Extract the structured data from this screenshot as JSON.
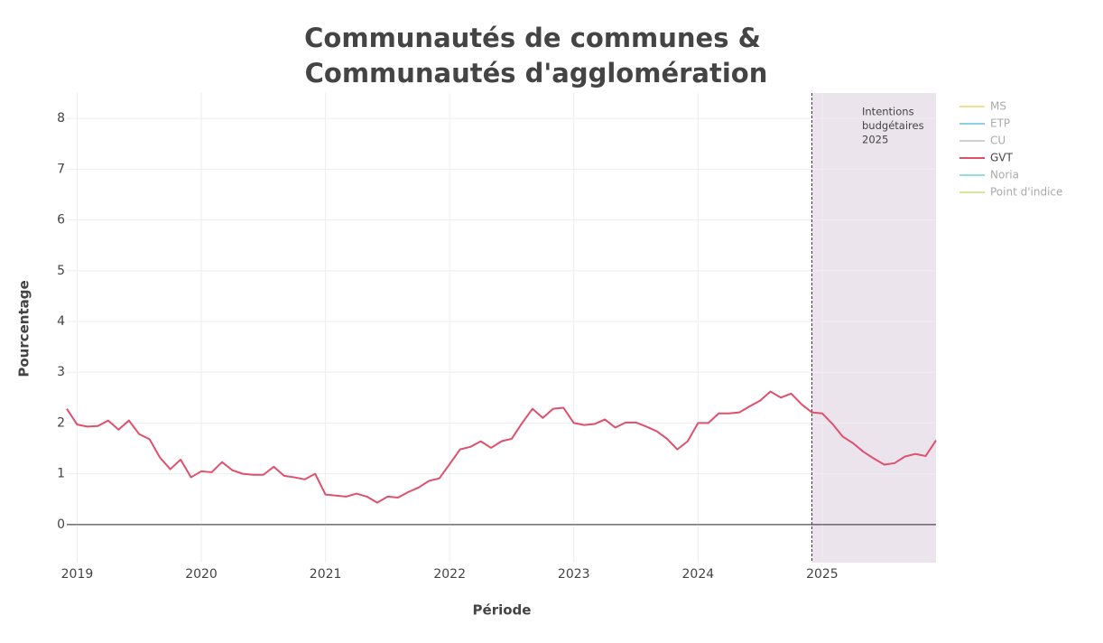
{
  "chart_data": {
    "type": "line",
    "title": [
      "Communautés de communes &",
      "Communautés d'agglomération"
    ],
    "xlabel": "Période",
    "ylabel": "Pourcentage",
    "x": [
      "2018-12",
      "2019-01",
      "2019-02",
      "2019-03",
      "2019-04",
      "2019-05",
      "2019-06",
      "2019-07",
      "2019-08",
      "2019-09",
      "2019-10",
      "2019-11",
      "2019-12",
      "2020-01",
      "2020-02",
      "2020-03",
      "2020-04",
      "2020-05",
      "2020-06",
      "2020-07",
      "2020-08",
      "2020-09",
      "2020-10",
      "2020-11",
      "2020-12",
      "2021-01",
      "2021-02",
      "2021-03",
      "2021-04",
      "2021-05",
      "2021-06",
      "2021-07",
      "2021-08",
      "2021-09",
      "2021-10",
      "2021-11",
      "2021-12",
      "2022-01",
      "2022-02",
      "2022-03",
      "2022-04",
      "2022-05",
      "2022-06",
      "2022-07",
      "2022-08",
      "2022-09",
      "2022-10",
      "2022-11",
      "2022-12",
      "2023-01",
      "2023-02",
      "2023-03",
      "2023-04",
      "2023-05",
      "2023-06",
      "2023-07",
      "2023-08",
      "2023-09",
      "2023-10",
      "2023-11",
      "2023-12",
      "2024-01",
      "2024-02",
      "2024-03",
      "2024-04",
      "2024-05",
      "2024-06",
      "2024-07",
      "2024-08",
      "2024-09",
      "2024-10",
      "2024-11",
      "2024-12",
      "2025-01",
      "2025-02",
      "2025-03",
      "2025-04",
      "2025-05",
      "2025-06",
      "2025-07",
      "2025-08",
      "2025-09",
      "2025-10",
      "2025-11",
      "2025-12"
    ],
    "series": [
      {
        "name": "MS",
        "color": "#f6dc95",
        "visible": "legendonly"
      },
      {
        "name": "ETP",
        "color": "#8ccfe6",
        "visible": "legendonly"
      },
      {
        "name": "CU",
        "color": "#cfcfd4",
        "visible": "legendonly"
      },
      {
        "name": "GVT",
        "color": "#e0506c",
        "visible": true,
        "values": [
          2.28,
          1.97,
          1.93,
          1.94,
          2.05,
          1.87,
          2.05,
          1.78,
          1.68,
          1.32,
          1.09,
          1.28,
          0.93,
          1.05,
          1.03,
          1.23,
          1.07,
          1.0,
          0.98,
          0.98,
          1.14,
          0.96,
          0.93,
          0.89,
          1.0,
          0.59,
          0.57,
          0.55,
          0.61,
          0.55,
          0.43,
          0.55,
          0.53,
          0.64,
          0.73,
          0.86,
          0.91,
          1.19,
          1.48,
          1.53,
          1.64,
          1.51,
          1.64,
          1.69,
          2.0,
          2.28,
          2.1,
          2.28,
          2.3,
          2.0,
          1.96,
          1.98,
          2.07,
          1.91,
          2.01,
          2.01,
          1.93,
          1.84,
          1.69,
          1.48,
          1.64,
          2.0,
          2.0,
          2.19,
          2.19,
          2.21,
          2.33,
          2.44,
          2.62,
          2.5,
          2.58,
          2.37,
          2.21,
          2.19,
          1.98,
          1.73,
          1.6,
          1.43,
          1.3,
          1.18,
          1.21,
          1.34,
          1.39,
          1.35,
          1.66
        ]
      },
      {
        "name": "Noria",
        "color": "#93dfe0",
        "visible": "legendonly"
      },
      {
        "name": "Point d'indice",
        "color": "#d9e3a0",
        "visible": "legendonly"
      }
    ],
    "xlim": [
      "2018-12",
      "2025-12"
    ],
    "xticks": [
      {
        "value": "2019-01",
        "label": "2019"
      },
      {
        "value": "2020-01",
        "label": "2020"
      },
      {
        "value": "2021-01",
        "label": "2021"
      },
      {
        "value": "2022-01",
        "label": "2022"
      },
      {
        "value": "2023-01",
        "label": "2023"
      },
      {
        "value": "2024-01",
        "label": "2024"
      },
      {
        "value": "2025-01",
        "label": "2025"
      }
    ],
    "ylim": [
      -0.75,
      8.5
    ],
    "yticks": [
      0,
      1,
      2,
      3,
      4,
      5,
      6,
      7,
      8
    ],
    "grid": true,
    "highlight": {
      "x0": "2024-12",
      "x1": "2025-12",
      "color": "#ebe4ed"
    },
    "annotation": [
      "Intentions",
      "budgétaires",
      "2025"
    ],
    "legend": "right"
  }
}
